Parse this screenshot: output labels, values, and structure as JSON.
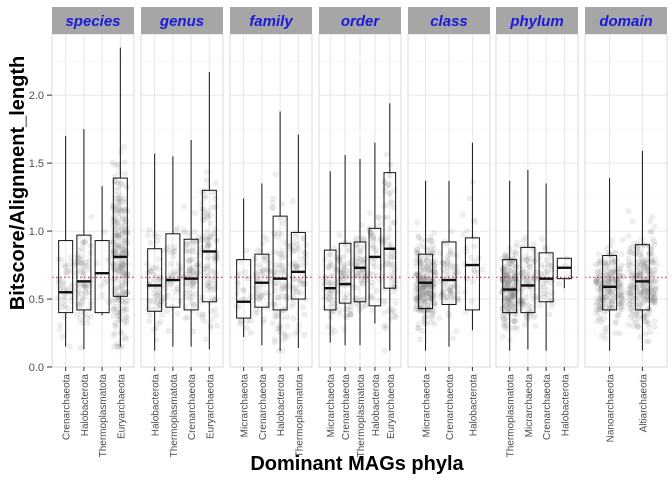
{
  "chart_data": {
    "type": "box",
    "ylabel": "Bitscore/Alignment_length",
    "xlabel": "Dominant MAGs phyla",
    "ylim": [
      0,
      2.45
    ],
    "yticks": [
      0.0,
      0.5,
      1.0,
      1.5,
      2.0
    ],
    "ytick_labels": [
      "0.0",
      "0.5",
      "1.0",
      "1.5",
      "2.0"
    ],
    "reference_line": {
      "y": 0.66,
      "style": "dotted",
      "color": "#cc3333"
    },
    "grid": true,
    "colors": {
      "strip_bg": "#a6a6a6",
      "strip_text": "#1a1adb",
      "points": "#7f7f7f",
      "box": "#111111"
    },
    "panels": [
      {
        "label": "species",
        "categories": [
          "Crenarchaeota",
          "Halobacterota",
          "Thermoplasmatota",
          "Euryarchaeota"
        ],
        "boxes": [
          {
            "min": 0.15,
            "q1": 0.4,
            "median": 0.55,
            "q3": 0.93,
            "max": 1.7,
            "n": 40
          },
          {
            "min": 0.13,
            "q1": 0.42,
            "median": 0.63,
            "q3": 0.97,
            "max": 1.75,
            "n": 70
          },
          {
            "min": 0.38,
            "q1": 0.4,
            "median": 0.69,
            "q3": 0.93,
            "max": 1.33,
            "n": 8
          },
          {
            "min": 0.15,
            "q1": 0.52,
            "median": 0.81,
            "q3": 1.39,
            "max": 2.35,
            "n": 260
          }
        ]
      },
      {
        "label": "genus",
        "categories": [
          "Halobacterota",
          "Thermoplasmatota",
          "Crenarchaeota",
          "Euryarchaeota"
        ],
        "boxes": [
          {
            "min": 0.12,
            "q1": 0.41,
            "median": 0.6,
            "q3": 0.87,
            "max": 1.57,
            "n": 60
          },
          {
            "min": 0.15,
            "q1": 0.44,
            "median": 0.64,
            "q3": 0.98,
            "max": 1.55,
            "n": 40
          },
          {
            "min": 0.15,
            "q1": 0.42,
            "median": 0.65,
            "q3": 0.94,
            "max": 1.67,
            "n": 80
          },
          {
            "min": 0.13,
            "q1": 0.48,
            "median": 0.85,
            "q3": 1.3,
            "max": 2.17,
            "n": 100
          }
        ]
      },
      {
        "label": "family",
        "categories": [
          "Micrarchaeota",
          "Crenarchaeota",
          "Halobacterota",
          "Thermoplasmatota"
        ],
        "boxes": [
          {
            "min": 0.22,
            "q1": 0.36,
            "median": 0.48,
            "q3": 0.79,
            "max": 1.24,
            "n": 25
          },
          {
            "min": 0.16,
            "q1": 0.44,
            "median": 0.62,
            "q3": 0.83,
            "max": 1.35,
            "n": 50
          },
          {
            "min": 0.12,
            "q1": 0.42,
            "median": 0.65,
            "q3": 1.11,
            "max": 1.88,
            "n": 80
          },
          {
            "min": 0.14,
            "q1": 0.5,
            "median": 0.7,
            "q3": 0.99,
            "max": 1.71,
            "n": 60
          }
        ]
      },
      {
        "label": "order",
        "categories": [
          "Micrarchaeota",
          "Crenarchaeota",
          "Thermoplasmatota",
          "Halobacterota",
          "Euryarchaeota"
        ],
        "boxes": [
          {
            "min": 0.18,
            "q1": 0.42,
            "median": 0.58,
            "q3": 0.86,
            "max": 1.44,
            "n": 50
          },
          {
            "min": 0.16,
            "q1": 0.47,
            "median": 0.61,
            "q3": 0.91,
            "max": 1.56,
            "n": 60
          },
          {
            "min": 0.16,
            "q1": 0.48,
            "median": 0.73,
            "q3": 0.92,
            "max": 1.53,
            "n": 60
          },
          {
            "min": 0.32,
            "q1": 0.45,
            "median": 0.81,
            "q3": 1.02,
            "max": 1.65,
            "n": 40
          },
          {
            "min": 0.12,
            "q1": 0.58,
            "median": 0.87,
            "q3": 1.43,
            "max": 1.94,
            "n": 70
          }
        ]
      },
      {
        "label": "class",
        "categories": [
          "Micrarchaeota",
          "Crenarchaeota",
          "Halobacterota"
        ],
        "boxes": [
          {
            "min": 0.12,
            "q1": 0.43,
            "median": 0.62,
            "q3": 0.83,
            "max": 1.37,
            "n": 260
          },
          {
            "min": 0.15,
            "q1": 0.46,
            "median": 0.64,
            "q3": 0.92,
            "max": 1.37,
            "n": 70
          },
          {
            "min": 0.27,
            "q1": 0.42,
            "median": 0.75,
            "q3": 0.95,
            "max": 1.65,
            "n": 25
          }
        ]
      },
      {
        "label": "phylum",
        "categories": [
          "Thermoplasmatota",
          "Micrarchaeota",
          "Crenarchaeota",
          "Halobacterota"
        ],
        "boxes": [
          {
            "min": 0.12,
            "q1": 0.4,
            "median": 0.57,
            "q3": 0.79,
            "max": 1.37,
            "n": 200
          },
          {
            "min": 0.13,
            "q1": 0.4,
            "median": 0.6,
            "q3": 0.88,
            "max": 1.45,
            "n": 80
          },
          {
            "min": 0.12,
            "q1": 0.48,
            "median": 0.65,
            "q3": 0.84,
            "max": 1.35,
            "n": 40
          },
          {
            "min": 0.58,
            "q1": 0.65,
            "median": 0.73,
            "q3": 0.8,
            "max": 0.8,
            "n": 4
          }
        ]
      },
      {
        "label": "domain",
        "categories": [
          "Nanoarchaeota",
          "Altiarchaeota"
        ],
        "boxes": [
          {
            "min": 0.12,
            "q1": 0.42,
            "median": 0.59,
            "q3": 0.82,
            "max": 1.39,
            "n": 220
          },
          {
            "min": 0.12,
            "q1": 0.42,
            "median": 0.63,
            "q3": 0.9,
            "max": 1.59,
            "n": 260
          }
        ]
      }
    ]
  }
}
